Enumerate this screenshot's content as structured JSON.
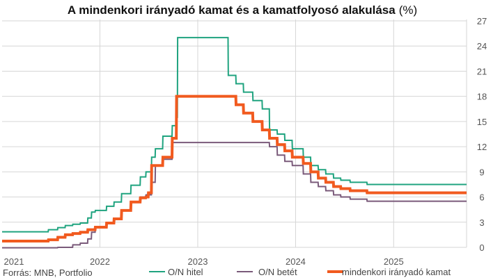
{
  "chart_data": {
    "type": "line",
    "title": "A mindenkori irányadó kamat és a kamatfolyosó alakulása",
    "title_unit": "(%)",
    "source": "Forrás: MNB, Portfolio",
    "x_ticks": [
      "2021",
      "2022",
      "2023",
      "2024",
      "2025"
    ],
    "xlim": [
      "2021-01-01",
      "2025-09-30"
    ],
    "y_ticks": [
      0,
      3,
      6,
      9,
      12,
      15,
      18,
      21,
      24,
      27
    ],
    "ylim": [
      0,
      27
    ],
    "y_axis_side": "right",
    "grid": true,
    "legend_position": "bottom",
    "colors": {
      "hitel": "#1fa37f",
      "betet": "#7a5a7a",
      "alap": "#f15a1f"
    },
    "series": [
      {
        "name": "O/N hitel",
        "key": "hitel",
        "points": [
          [
            "2021-01-01",
            1.85
          ],
          [
            "2021-06-22",
            1.85
          ],
          [
            "2021-06-23",
            2.1
          ],
          [
            "2021-07-27",
            2.1
          ],
          [
            "2021-07-28",
            2.35
          ],
          [
            "2021-08-24",
            2.35
          ],
          [
            "2021-08-25",
            2.6
          ],
          [
            "2021-09-21",
            2.6
          ],
          [
            "2021-09-22",
            2.75
          ],
          [
            "2021-10-19",
            2.75
          ],
          [
            "2021-10-20",
            2.9
          ],
          [
            "2021-11-16",
            2.9
          ],
          [
            "2021-11-17",
            3.5
          ],
          [
            "2021-11-30",
            3.5
          ],
          [
            "2021-12-01",
            4.2
          ],
          [
            "2021-12-14",
            4.2
          ],
          [
            "2021-12-15",
            4.4
          ],
          [
            "2022-01-25",
            4.4
          ],
          [
            "2022-01-26",
            4.9
          ],
          [
            "2022-02-22",
            4.9
          ],
          [
            "2022-02-23",
            5.4
          ],
          [
            "2022-03-22",
            5.4
          ],
          [
            "2022-03-23",
            6.4
          ],
          [
            "2022-04-26",
            6.4
          ],
          [
            "2022-04-27",
            7.4
          ],
          [
            "2022-05-31",
            7.4
          ],
          [
            "2022-06-01",
            8.4
          ],
          [
            "2022-06-21",
            8.4
          ],
          [
            "2022-06-22",
            9.0
          ],
          [
            "2022-07-12",
            9.0
          ],
          [
            "2022-07-13",
            10.75
          ],
          [
            "2022-07-26",
            10.75
          ],
          [
            "2022-07-27",
            11.75
          ],
          [
            "2022-08-23",
            11.75
          ],
          [
            "2022-08-24",
            13.25
          ],
          [
            "2022-09-27",
            13.25
          ],
          [
            "2022-09-28",
            14.5
          ],
          [
            "2022-10-13",
            14.5
          ],
          [
            "2022-10-14",
            15.5
          ],
          [
            "2022-10-17",
            15.5
          ],
          [
            "2022-10-18",
            25.0
          ],
          [
            "2023-04-24",
            25.0
          ],
          [
            "2023-04-25",
            20.5
          ],
          [
            "2023-05-23",
            20.5
          ],
          [
            "2023-05-24",
            19.5
          ],
          [
            "2023-06-20",
            19.5
          ],
          [
            "2023-06-21",
            18.5
          ],
          [
            "2023-07-25",
            18.5
          ],
          [
            "2023-07-26",
            17.5
          ],
          [
            "2023-08-29",
            17.5
          ],
          [
            "2023-08-30",
            16.5
          ],
          [
            "2023-09-25",
            16.5
          ],
          [
            "2023-09-26",
            14.0
          ],
          [
            "2023-10-24",
            14.0
          ],
          [
            "2023-10-25",
            13.5
          ],
          [
            "2023-11-21",
            13.5
          ],
          [
            "2023-11-22",
            12.75
          ],
          [
            "2023-12-19",
            12.75
          ],
          [
            "2023-12-20",
            11.75
          ],
          [
            "2024-01-29",
            11.75
          ],
          [
            "2024-01-30",
            10.75
          ],
          [
            "2024-02-26",
            10.75
          ],
          [
            "2024-02-27",
            9.75
          ],
          [
            "2024-03-25",
            9.75
          ],
          [
            "2024-03-26",
            9.25
          ],
          [
            "2024-04-22",
            9.25
          ],
          [
            "2024-04-23",
            8.75
          ],
          [
            "2024-05-21",
            8.75
          ],
          [
            "2024-05-22",
            8.25
          ],
          [
            "2024-06-17",
            8.25
          ],
          [
            "2024-06-18",
            8.0
          ],
          [
            "2024-07-22",
            8.0
          ],
          [
            "2024-07-23",
            7.75
          ],
          [
            "2024-09-23",
            7.75
          ],
          [
            "2024-09-24",
            7.5
          ],
          [
            "2025-09-30",
            7.5
          ]
        ]
      },
      {
        "name": "O/N betét",
        "key": "betet",
        "points": [
          [
            "2021-01-01",
            -0.05
          ],
          [
            "2021-07-27",
            -0.05
          ],
          [
            "2021-07-28",
            0.0
          ],
          [
            "2021-09-21",
            0.0
          ],
          [
            "2021-09-22",
            0.3
          ],
          [
            "2021-10-19",
            0.3
          ],
          [
            "2021-10-20",
            0.5
          ],
          [
            "2021-11-16",
            0.5
          ],
          [
            "2021-11-17",
            1.0
          ],
          [
            "2021-11-30",
            1.0
          ],
          [
            "2021-12-01",
            1.8
          ],
          [
            "2021-12-14",
            1.8
          ],
          [
            "2021-12-15",
            2.4
          ],
          [
            "2022-01-25",
            2.4
          ],
          [
            "2022-01-26",
            2.9
          ],
          [
            "2022-02-22",
            2.9
          ],
          [
            "2022-02-23",
            3.4
          ],
          [
            "2022-03-22",
            3.4
          ],
          [
            "2022-03-23",
            4.4
          ],
          [
            "2022-04-26",
            4.4
          ],
          [
            "2022-04-27",
            5.4
          ],
          [
            "2022-05-31",
            5.4
          ],
          [
            "2022-06-01",
            6.0
          ],
          [
            "2022-06-21",
            6.0
          ],
          [
            "2022-06-22",
            6.25
          ],
          [
            "2022-07-12",
            6.25
          ],
          [
            "2022-07-13",
            7.75
          ],
          [
            "2022-07-26",
            7.75
          ],
          [
            "2022-07-27",
            9.75
          ],
          [
            "2022-08-23",
            9.75
          ],
          [
            "2022-08-24",
            10.5
          ],
          [
            "2022-09-27",
            10.5
          ],
          [
            "2022-09-28",
            12.5
          ],
          [
            "2023-09-25",
            12.5
          ],
          [
            "2023-09-26",
            12.0
          ],
          [
            "2023-10-24",
            12.0
          ],
          [
            "2023-10-25",
            11.0
          ],
          [
            "2023-11-21",
            11.0
          ],
          [
            "2023-11-22",
            10.25
          ],
          [
            "2023-12-19",
            10.25
          ],
          [
            "2023-12-20",
            9.75
          ],
          [
            "2024-01-29",
            9.75
          ],
          [
            "2024-01-30",
            8.75
          ],
          [
            "2024-02-26",
            8.75
          ],
          [
            "2024-02-27",
            7.75
          ],
          [
            "2024-03-25",
            7.75
          ],
          [
            "2024-03-26",
            7.25
          ],
          [
            "2024-04-22",
            7.25
          ],
          [
            "2024-04-23",
            6.75
          ],
          [
            "2024-05-21",
            6.75
          ],
          [
            "2024-05-22",
            6.25
          ],
          [
            "2024-06-17",
            6.25
          ],
          [
            "2024-06-18",
            6.0
          ],
          [
            "2024-07-22",
            6.0
          ],
          [
            "2024-07-23",
            5.75
          ],
          [
            "2024-09-23",
            5.75
          ],
          [
            "2024-09-24",
            5.5
          ],
          [
            "2025-09-30",
            5.5
          ]
        ]
      },
      {
        "name": "mindenkori irányadó kamat",
        "key": "alap",
        "points": [
          [
            "2021-01-01",
            0.75
          ],
          [
            "2021-06-22",
            0.75
          ],
          [
            "2021-06-23",
            0.9
          ],
          [
            "2021-07-27",
            0.9
          ],
          [
            "2021-07-28",
            1.2
          ],
          [
            "2021-08-24",
            1.2
          ],
          [
            "2021-08-25",
            1.5
          ],
          [
            "2021-09-21",
            1.5
          ],
          [
            "2021-09-22",
            1.65
          ],
          [
            "2021-10-19",
            1.65
          ],
          [
            "2021-10-20",
            1.8
          ],
          [
            "2021-11-16",
            1.8
          ],
          [
            "2021-11-17",
            2.1
          ],
          [
            "2021-12-14",
            2.1
          ],
          [
            "2021-12-15",
            2.4
          ],
          [
            "2022-01-25",
            2.4
          ],
          [
            "2022-01-26",
            2.9
          ],
          [
            "2022-02-22",
            2.9
          ],
          [
            "2022-02-23",
            3.4
          ],
          [
            "2022-03-22",
            3.4
          ],
          [
            "2022-03-23",
            4.4
          ],
          [
            "2022-04-26",
            4.4
          ],
          [
            "2022-04-27",
            5.4
          ],
          [
            "2022-05-31",
            5.4
          ],
          [
            "2022-06-01",
            5.9
          ],
          [
            "2022-06-21",
            5.9
          ],
          [
            "2022-06-22",
            6.0
          ],
          [
            "2022-06-30",
            6.0
          ],
          [
            "2022-07-01",
            6.5
          ],
          [
            "2022-07-12",
            6.5
          ],
          [
            "2022-07-13",
            9.75
          ],
          [
            "2022-08-23",
            9.75
          ],
          [
            "2022-08-24",
            10.75
          ],
          [
            "2022-09-27",
            10.75
          ],
          [
            "2022-09-28",
            13.0
          ],
          [
            "2022-10-13",
            13.0
          ],
          [
            "2022-10-14",
            18.0
          ],
          [
            "2023-05-23",
            18.0
          ],
          [
            "2023-05-24",
            17.0
          ],
          [
            "2023-06-20",
            17.0
          ],
          [
            "2023-06-21",
            16.0
          ],
          [
            "2023-07-25",
            16.0
          ],
          [
            "2023-07-26",
            15.0
          ],
          [
            "2023-08-29",
            15.0
          ],
          [
            "2023-08-30",
            14.0
          ],
          [
            "2023-09-25",
            14.0
          ],
          [
            "2023-09-26",
            13.0
          ],
          [
            "2023-10-24",
            13.0
          ],
          [
            "2023-10-25",
            12.25
          ],
          [
            "2023-11-21",
            12.25
          ],
          [
            "2023-11-22",
            11.5
          ],
          [
            "2023-12-19",
            11.5
          ],
          [
            "2023-12-20",
            10.75
          ],
          [
            "2024-01-29",
            10.75
          ],
          [
            "2024-01-30",
            10.0
          ],
          [
            "2024-02-26",
            10.0
          ],
          [
            "2024-02-27",
            9.0
          ],
          [
            "2024-03-25",
            9.0
          ],
          [
            "2024-03-26",
            8.25
          ],
          [
            "2024-04-22",
            8.25
          ],
          [
            "2024-04-23",
            7.75
          ],
          [
            "2024-05-21",
            7.75
          ],
          [
            "2024-05-22",
            7.25
          ],
          [
            "2024-06-17",
            7.25
          ],
          [
            "2024-06-18",
            7.0
          ],
          [
            "2024-07-22",
            7.0
          ],
          [
            "2024-07-23",
            6.75
          ],
          [
            "2024-09-23",
            6.75
          ],
          [
            "2024-09-24",
            6.5
          ],
          [
            "2025-09-30",
            6.5
          ]
        ]
      }
    ]
  }
}
